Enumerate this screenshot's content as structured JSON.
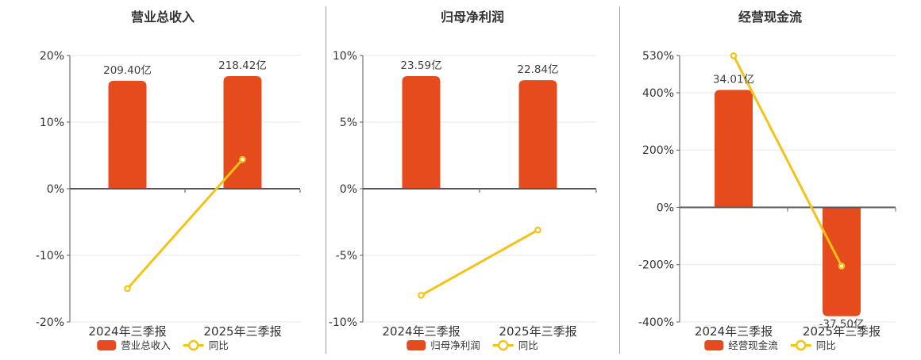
{
  "colors": {
    "bar": "#e64b1d",
    "line": "#f3c317",
    "marker_fill": "#ffffff",
    "grid": "#e2e8f2",
    "axis": "#55585e",
    "zero_axis": "#55585e",
    "divider": "#9e9e9e",
    "title_text": "#333333",
    "tick_text": "#333333",
    "category_text": "#333333",
    "value_label_text": "#404040",
    "legend_text": "#333333",
    "background": "#ffffff"
  },
  "chart_data": [
    {
      "type": "bar+line",
      "title": "营业总收入",
      "categories": [
        "2024年三季报",
        "2025年三季报"
      ],
      "bar_series": {
        "name": "营业总收入",
        "value_labels": [
          "209.40亿",
          "218.42亿"
        ],
        "plotted_axis_values": [
          16.2,
          16.9
        ]
      },
      "line_series": {
        "name": "同比",
        "values_pct": [
          -15.0,
          4.4
        ]
      },
      "y_ticks": [
        {
          "value": 20,
          "label": "20%"
        },
        {
          "value": 10,
          "label": "10%"
        },
        {
          "value": 0,
          "label": "0%"
        },
        {
          "value": -10,
          "label": "-10%"
        },
        {
          "value": -20,
          "label": "-20%"
        }
      ],
      "ylim": [
        -20,
        20
      ],
      "grid": true,
      "legend_position": "bottom"
    },
    {
      "type": "bar+line",
      "title": "归母净利润",
      "categories": [
        "2024年三季报",
        "2025年三季报"
      ],
      "bar_series": {
        "name": "归母净利润",
        "value_labels": [
          "23.59亿",
          "22.84亿"
        ],
        "plotted_axis_values": [
          8.45,
          8.15
        ]
      },
      "line_series": {
        "name": "同比",
        "values_pct": [
          -8.0,
          -3.1
        ]
      },
      "y_ticks": [
        {
          "value": 10,
          "label": "10%"
        },
        {
          "value": 5,
          "label": "5%"
        },
        {
          "value": 0,
          "label": "0%"
        },
        {
          "value": -5,
          "label": "-5%"
        },
        {
          "value": -10,
          "label": "-10%"
        }
      ],
      "ylim": [
        -10,
        10
      ],
      "grid": true,
      "legend_position": "bottom"
    },
    {
      "type": "bar+line",
      "title": "经营现金流",
      "categories": [
        "2024年三季报",
        "2025年三季报"
      ],
      "bar_series": {
        "name": "经营现金流",
        "value_labels": [
          "34.01亿",
          "-37.50亿"
        ],
        "plotted_axis_values": [
          410,
          -380
        ]
      },
      "line_series": {
        "name": "同比",
        "values_pct": [
          529,
          -205
        ]
      },
      "y_ticks": [
        {
          "value": 530,
          "label": "530%"
        },
        {
          "value": 400,
          "label": "400%"
        },
        {
          "value": 200,
          "label": "200%"
        },
        {
          "value": 0,
          "label": "0%"
        },
        {
          "value": -200,
          "label": "-200%"
        },
        {
          "value": -400,
          "label": "-400%"
        }
      ],
      "ylim": [
        -400,
        530
      ],
      "grid": true,
      "legend_position": "bottom"
    }
  ]
}
